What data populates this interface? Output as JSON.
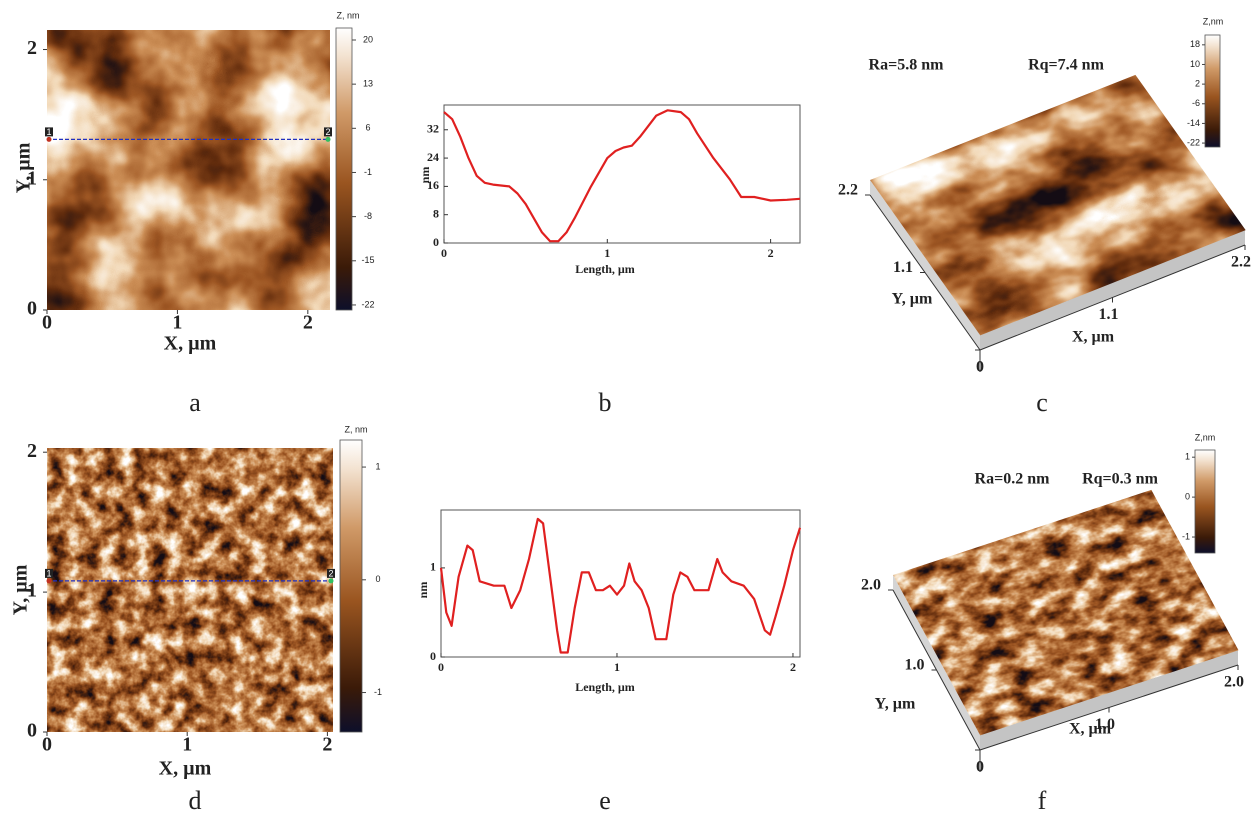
{
  "chart_data": [
    {
      "type": "heatmap",
      "label": "a",
      "xlabel": "X, µm",
      "ylabel": "Y, µm",
      "xlim": [
        0,
        2.17
      ],
      "xticks": [
        0,
        1,
        2
      ],
      "ylim": [
        0,
        2.15
      ],
      "yticks": [
        0,
        1,
        2
      ],
      "colorbar": {
        "title": "Z, nm",
        "lim": [
          -22.8,
          21.9
        ],
        "ticks": [
          20,
          13,
          6,
          -1,
          -8,
          -15,
          -22
        ]
      },
      "profile": {
        "y": 1.31,
        "start": "1",
        "end": "2"
      }
    },
    {
      "type": "line",
      "label": "b",
      "xlabel": "Length, µm",
      "ylabel": "nm",
      "color": "#e02020",
      "xlim": [
        0,
        2.18
      ],
      "xticks": [
        0,
        1,
        2
      ],
      "ylim": [
        0,
        39
      ],
      "yticks": [
        0,
        8,
        16,
        24,
        32
      ],
      "x": [
        0,
        0.05,
        0.1,
        0.15,
        0.2,
        0.25,
        0.3,
        0.4,
        0.45,
        0.5,
        0.55,
        0.6,
        0.65,
        0.7,
        0.75,
        0.8,
        0.9,
        1.0,
        1.05,
        1.1,
        1.15,
        1.2,
        1.3,
        1.37,
        1.45,
        1.5,
        1.55,
        1.65,
        1.75,
        1.82,
        1.9,
        2.0,
        2.1,
        2.18
      ],
      "values": [
        37,
        35,
        30,
        24,
        19,
        17,
        16.5,
        16,
        14,
        11,
        7,
        3,
        0.5,
        0.5,
        3,
        7,
        16,
        24,
        26,
        27,
        27.5,
        30,
        36,
        37.5,
        37,
        35,
        31,
        24,
        18,
        13,
        13,
        12,
        12.2,
        12.5
      ]
    },
    {
      "type": "surface",
      "label": "c",
      "xlabel": "X, µm",
      "ylabel": "Y, µm",
      "annotations": [
        "Ra=5.8 nm",
        "Rq=7.4 nm"
      ],
      "xlim": [
        0,
        2.2
      ],
      "xticks": [
        1.1,
        2.2
      ],
      "ylim": [
        0,
        2.2
      ],
      "yticks": [
        0,
        1.1,
        2.2
      ],
      "colorbar": {
        "title": "Z,nm",
        "lim": [
          -23.6,
          22
        ],
        "ticks": [
          18,
          10,
          2,
          -6,
          -14,
          -22
        ]
      }
    },
    {
      "type": "heatmap",
      "label": "d",
      "xlabel": "X, µm",
      "ylabel": "Y, µm",
      "xlim": [
        0,
        2.04
      ],
      "xticks": [
        0,
        1,
        2
      ],
      "ylim": [
        0,
        2.03
      ],
      "yticks": [
        0,
        1,
        2
      ],
      "colorbar": {
        "title": "Z, nm",
        "lim": [
          -1.35,
          1.24
        ],
        "ticks": [
          1,
          0,
          -1
        ]
      },
      "profile": {
        "y": 1.08,
        "start": "1",
        "end": "2"
      }
    },
    {
      "type": "line",
      "label": "e",
      "xlabel": "Length, µm",
      "ylabel": "nm",
      "color": "#e02020",
      "xlim": [
        0,
        2.04
      ],
      "xticks": [
        0,
        1,
        2
      ],
      "ylim": [
        0,
        1.65
      ],
      "yticks": [
        0,
        1
      ],
      "x": [
        0,
        0.03,
        0.06,
        0.1,
        0.15,
        0.18,
        0.22,
        0.3,
        0.36,
        0.4,
        0.45,
        0.5,
        0.55,
        0.58,
        0.62,
        0.66,
        0.68,
        0.72,
        0.76,
        0.8,
        0.84,
        0.88,
        0.92,
        0.96,
        1.0,
        1.04,
        1.07,
        1.1,
        1.14,
        1.18,
        1.22,
        1.28,
        1.32,
        1.36,
        1.4,
        1.44,
        1.48,
        1.52,
        1.57,
        1.6,
        1.65,
        1.72,
        1.78,
        1.84,
        1.87,
        1.9,
        1.95,
        2.0,
        2.04
      ],
      "values": [
        1.0,
        0.5,
        0.35,
        0.9,
        1.25,
        1.2,
        0.85,
        0.8,
        0.8,
        0.55,
        0.75,
        1.1,
        1.55,
        1.5,
        0.9,
        0.3,
        0.05,
        0.05,
        0.55,
        0.95,
        0.95,
        0.75,
        0.75,
        0.8,
        0.7,
        0.8,
        1.05,
        0.85,
        0.75,
        0.55,
        0.2,
        0.2,
        0.7,
        0.95,
        0.9,
        0.75,
        0.75,
        0.75,
        1.1,
        0.95,
        0.85,
        0.8,
        0.65,
        0.3,
        0.25,
        0.45,
        0.8,
        1.2,
        1.45
      ]
    },
    {
      "type": "surface",
      "label": "f",
      "xlabel": "X, µm",
      "ylabel": "Y, µm",
      "annotations": [
        "Ra=0.2 nm",
        "Rq=0.3 nm"
      ],
      "xlim": [
        0,
        2.0
      ],
      "xticks": [
        {
          "value": 1,
          "label": "1.0"
        },
        {
          "value": 2,
          "label": "2.0"
        }
      ],
      "ylim": [
        0,
        2.0
      ],
      "yticks": [
        0,
        {
          "value": 1,
          "label": "1.0"
        },
        {
          "value": 2,
          "label": "2.0"
        }
      ],
      "colorbar": {
        "title": "Z,nm",
        "lim": [
          -1.4,
          1.18
        ],
        "ticks": [
          1,
          0,
          -1
        ]
      }
    }
  ]
}
